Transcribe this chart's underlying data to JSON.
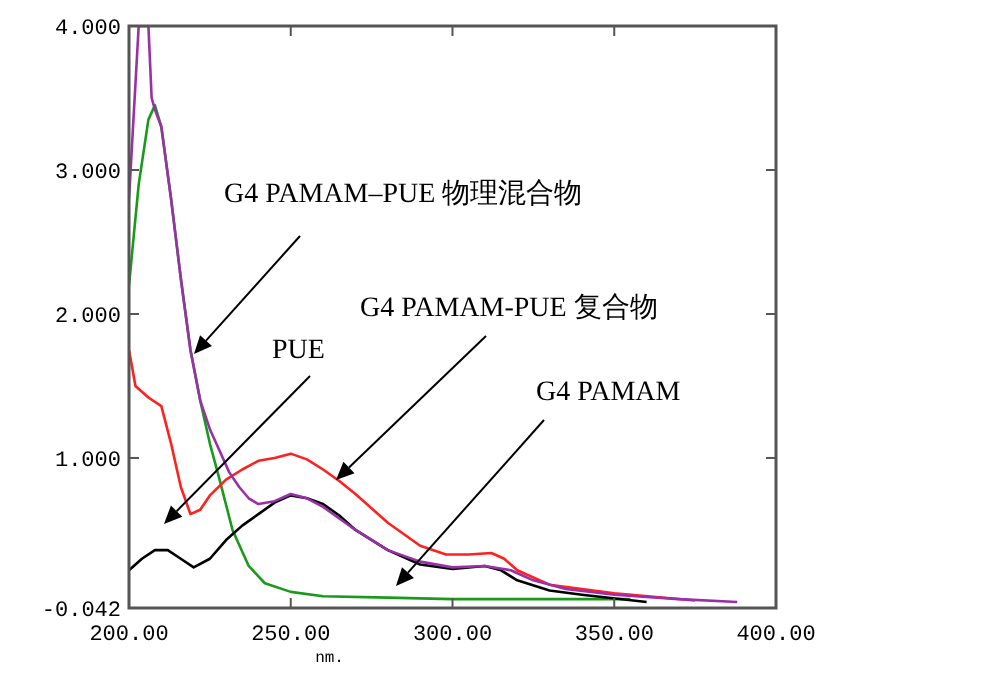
{
  "chart_data": {
    "type": "line",
    "xlabel": "nm.",
    "xlim": [
      200,
      400
    ],
    "ylim": [
      -0.042,
      4
    ],
    "xticks": [
      {
        "value": 200,
        "label": "200.00"
      },
      {
        "value": 250,
        "label": "250.00"
      },
      {
        "value": 300,
        "label": "300.00"
      },
      {
        "value": 350,
        "label": "350.00"
      },
      {
        "value": 400,
        "label": "400.00"
      }
    ],
    "yticks": [
      {
        "value": -0.042,
        "label": "-0.042"
      },
      {
        "value": 1,
        "label": "1.000"
      },
      {
        "value": 2,
        "label": "2.000"
      },
      {
        "value": 3,
        "label": "3.000"
      },
      {
        "value": 4,
        "label": "4.000"
      }
    ],
    "grid": false,
    "marker": "none",
    "line_style": "solid",
    "series": [
      {
        "color": "#1a9a1a",
        "x": [
          200,
          203,
          206,
          208,
          210,
          213,
          216,
          219,
          222,
          225,
          228,
          232,
          237,
          242,
          250,
          260,
          280,
          300,
          330,
          355
        ],
        "values": [
          2.2,
          2.9,
          3.35,
          3.45,
          3.3,
          2.8,
          2.25,
          1.75,
          1.4,
          1.1,
          0.85,
          0.5,
          0.25,
          0.13,
          0.07,
          0.04,
          0.03,
          0.02,
          0.02,
          0.02
        ]
      },
      {
        "color": "#000000",
        "x": [
          200,
          204,
          208,
          212,
          216,
          220,
          225,
          230,
          235,
          240,
          245,
          250,
          255,
          260,
          265,
          270,
          280,
          290,
          300,
          310,
          315,
          320,
          330,
          340,
          360
        ],
        "values": [
          0.22,
          0.3,
          0.36,
          0.36,
          0.3,
          0.24,
          0.3,
          0.43,
          0.53,
          0.61,
          0.69,
          0.74,
          0.72,
          0.68,
          0.6,
          0.5,
          0.36,
          0.26,
          0.23,
          0.25,
          0.22,
          0.15,
          0.08,
          0.05,
          0.0
        ]
      },
      {
        "color": "#ff2020",
        "x": [
          200,
          202,
          206,
          210,
          213,
          216,
          219,
          222,
          225,
          230,
          235,
          240,
          245,
          250,
          255,
          260,
          265,
          270,
          280,
          290,
          298,
          305,
          312,
          316,
          320,
          330,
          350,
          375
        ],
        "values": [
          1.75,
          1.5,
          1.42,
          1.36,
          1.1,
          0.8,
          0.61,
          0.64,
          0.74,
          0.85,
          0.92,
          0.98,
          1.0,
          1.03,
          0.99,
          0.92,
          0.84,
          0.75,
          0.55,
          0.39,
          0.33,
          0.33,
          0.34,
          0.3,
          0.22,
          0.12,
          0.06,
          0.01
        ]
      },
      {
        "color": "#9b2fa8",
        "x": [
          200,
          202,
          203,
          206,
          207,
          208,
          210,
          213,
          216,
          219,
          222,
          225,
          228,
          231,
          234,
          237,
          240,
          245,
          250,
          255,
          260,
          265,
          270,
          280,
          290,
          300,
          310,
          318,
          325,
          335,
          350,
          370,
          388
        ],
        "values": [
          2.8,
          3.6,
          4.0,
          4.0,
          3.5,
          3.42,
          3.3,
          2.8,
          2.25,
          1.75,
          1.4,
          1.2,
          1.05,
          0.9,
          0.8,
          0.72,
          0.68,
          0.7,
          0.75,
          0.72,
          0.66,
          0.58,
          0.5,
          0.36,
          0.28,
          0.24,
          0.25,
          0.22,
          0.15,
          0.09,
          0.05,
          0.02,
          0.0
        ]
      }
    ],
    "annotations": [
      "G4 PAMAM–PUE 物理混合物",
      "G4 PAMAM-PUE 复合物",
      "PUE",
      "G4 PAMAM"
    ]
  }
}
